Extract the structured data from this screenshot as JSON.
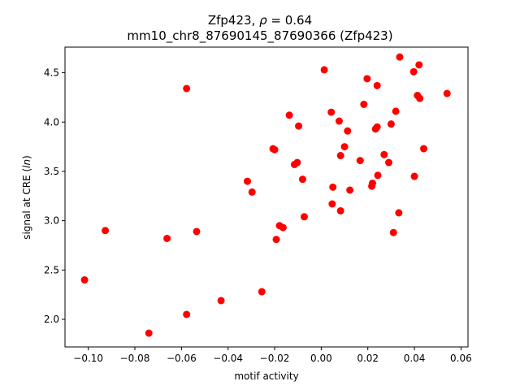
{
  "chart_data": {
    "type": "scatter",
    "title_line1": "Zfp423, ρ = 0.64",
    "title_line2": "mm10_chr8_87690145_87690366 (Zfp423)",
    "xlabel": "motif activity",
    "ylabel": "signal at CRE (ln)",
    "xlim": [
      -0.11,
      0.063
    ],
    "ylim": [
      1.72,
      4.76
    ],
    "xticks": [
      -0.1,
      -0.08,
      -0.06,
      -0.04,
      -0.02,
      0.0,
      0.02,
      0.04,
      0.06
    ],
    "xtick_labels": [
      "−0.10",
      "−0.08",
      "−0.06",
      "−0.04",
      "−0.02",
      "0.00",
      "0.02",
      "0.04",
      "0.06"
    ],
    "yticks": [
      2.0,
      2.5,
      3.0,
      3.5,
      4.0,
      4.5
    ],
    "ytick_labels": [
      "2.0",
      "2.5",
      "3.0",
      "3.5",
      "4.0",
      "4.5"
    ],
    "grid": false,
    "point_color": "#ff0000",
    "points": [
      {
        "x": -0.1016,
        "y": 2.4
      },
      {
        "x": -0.0927,
        "y": 2.9
      },
      {
        "x": -0.074,
        "y": 1.86
      },
      {
        "x": -0.0662,
        "y": 2.82
      },
      {
        "x": -0.0578,
        "y": 4.34
      },
      {
        "x": -0.0578,
        "y": 2.05
      },
      {
        "x": -0.0535,
        "y": 2.89
      },
      {
        "x": -0.043,
        "y": 2.19
      },
      {
        "x": -0.0317,
        "y": 3.4
      },
      {
        "x": -0.0297,
        "y": 3.29
      },
      {
        "x": -0.0255,
        "y": 2.28
      },
      {
        "x": -0.0207,
        "y": 3.73
      },
      {
        "x": -0.02,
        "y": 3.72
      },
      {
        "x": -0.0193,
        "y": 2.81
      },
      {
        "x": -0.0179,
        "y": 2.95
      },
      {
        "x": -0.0164,
        "y": 2.93
      },
      {
        "x": -0.0137,
        "y": 4.07
      },
      {
        "x": -0.0115,
        "y": 3.57
      },
      {
        "x": -0.0103,
        "y": 3.59
      },
      {
        "x": -0.0097,
        "y": 3.96
      },
      {
        "x": -0.008,
        "y": 3.42
      },
      {
        "x": -0.0073,
        "y": 3.04
      },
      {
        "x": 0.0013,
        "y": 4.53
      },
      {
        "x": 0.0043,
        "y": 4.1
      },
      {
        "x": 0.0047,
        "y": 3.17
      },
      {
        "x": 0.005,
        "y": 3.34
      },
      {
        "x": 0.0077,
        "y": 4.01
      },
      {
        "x": 0.0083,
        "y": 3.66
      },
      {
        "x": 0.0083,
        "y": 3.1
      },
      {
        "x": 0.01,
        "y": 3.75
      },
      {
        "x": 0.0113,
        "y": 3.91
      },
      {
        "x": 0.0123,
        "y": 3.31
      },
      {
        "x": 0.0167,
        "y": 3.61
      },
      {
        "x": 0.0183,
        "y": 4.18
      },
      {
        "x": 0.0197,
        "y": 4.44
      },
      {
        "x": 0.0217,
        "y": 3.35
      },
      {
        "x": 0.022,
        "y": 3.38
      },
      {
        "x": 0.0233,
        "y": 3.93
      },
      {
        "x": 0.024,
        "y": 3.95
      },
      {
        "x": 0.024,
        "y": 4.37
      },
      {
        "x": 0.0243,
        "y": 3.46
      },
      {
        "x": 0.027,
        "y": 3.67
      },
      {
        "x": 0.029,
        "y": 3.59
      },
      {
        "x": 0.03,
        "y": 3.98
      },
      {
        "x": 0.031,
        "y": 2.88
      },
      {
        "x": 0.032,
        "y": 4.11
      },
      {
        "x": 0.0333,
        "y": 3.08
      },
      {
        "x": 0.0337,
        "y": 4.66
      },
      {
        "x": 0.0397,
        "y": 4.51
      },
      {
        "x": 0.04,
        "y": 3.45
      },
      {
        "x": 0.0413,
        "y": 4.27
      },
      {
        "x": 0.042,
        "y": 4.58
      },
      {
        "x": 0.0423,
        "y": 4.24
      },
      {
        "x": 0.044,
        "y": 3.73
      },
      {
        "x": 0.054,
        "y": 4.29
      }
    ]
  }
}
